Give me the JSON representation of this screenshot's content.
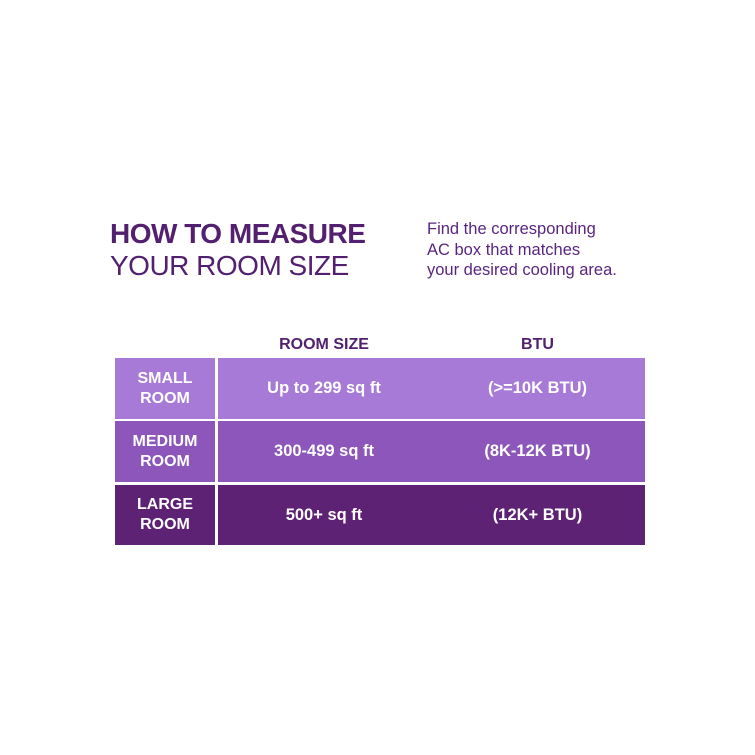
{
  "title": {
    "line1": "HOW TO MEASURE",
    "line2": "YOUR ROOM SIZE"
  },
  "description": [
    "Find the corresponding",
    "AC box that matches",
    "your desired cooling area."
  ],
  "table": {
    "headers": {
      "room_size": "ROOM SIZE",
      "btu": "BTU"
    },
    "rows": [
      {
        "label1": "SMALL",
        "label2": "ROOM",
        "size": "Up to 299 sq ft",
        "btu": "(>=10K BTU)",
        "color": "#a67ad6"
      },
      {
        "label1": "MEDIUM",
        "label2": "ROOM",
        "size": "300-499 sq ft",
        "btu": "(8K-12K BTU)",
        "color": "#8c56ba"
      },
      {
        "label1": "LARGE",
        "label2": "ROOM",
        "size": "500+ sq ft",
        "btu": "(12K+ BTU)",
        "color": "#5e2274"
      }
    ]
  },
  "colors": {
    "heading": "#52206f"
  }
}
